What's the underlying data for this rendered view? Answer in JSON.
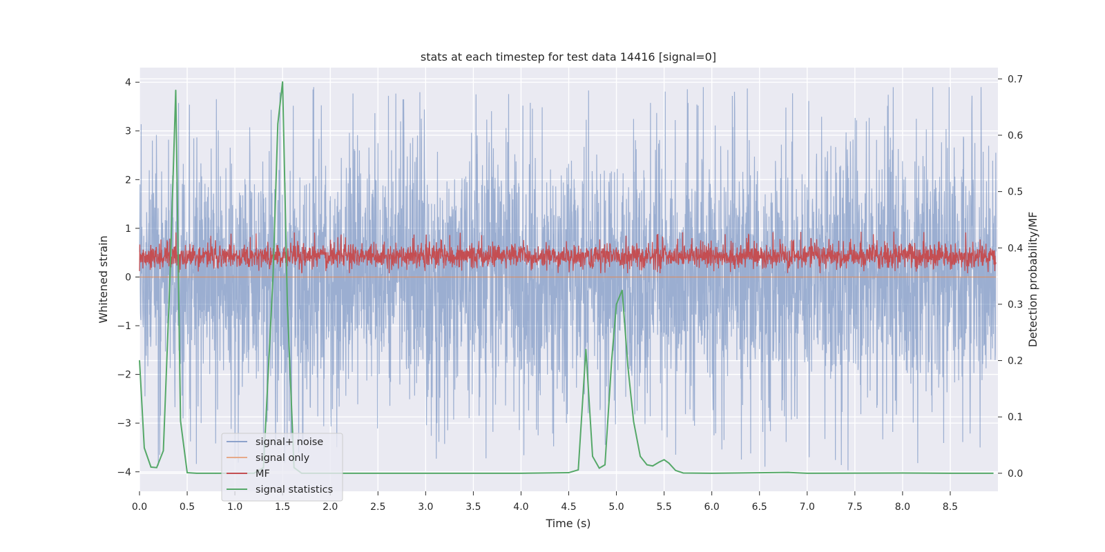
{
  "chart_data": {
    "type": "line",
    "title": "stats at each timestep for test data 14416 [signal=0]",
    "xlabel": "Time (s)",
    "ylabel": "Whitened strain",
    "y2label": "Detection probability/MF",
    "xlim": [
      0.0,
      9.0
    ],
    "ylim": [
      -4.4,
      4.3
    ],
    "y2lim": [
      -0.032,
      0.72
    ],
    "xticks": [
      "0.0",
      "0.5",
      "1.0",
      "1.5",
      "2.0",
      "2.5",
      "3.0",
      "3.5",
      "4.0",
      "4.5",
      "5.0",
      "5.5",
      "6.0",
      "6.5",
      "7.0",
      "7.5",
      "8.0",
      "8.5"
    ],
    "yticks": [
      "4",
      "3",
      "2",
      "1",
      "0",
      "−1",
      "−2",
      "−3",
      "−4"
    ],
    "y2ticks": [
      "0.7",
      "0.6",
      "0.5",
      "0.4",
      "0.3",
      "0.2",
      "0.1",
      "0.0"
    ],
    "grid": true,
    "legend_location": "lower-left",
    "colors": {
      "signal_noise": "#4c72b0",
      "signal_only": "#dd8452",
      "mf": "#c44e52",
      "statistics": "#55a868",
      "plot_bg": "#eaeaf2"
    },
    "series": [
      {
        "name": "signal+ noise",
        "axis": "left",
        "description": "dense noise trace approx ±2 with peaks to ±3.9",
        "range": [
          -4.0,
          3.9
        ]
      },
      {
        "name": "signal only",
        "axis": "left",
        "values": "flat at 0"
      },
      {
        "name": "MF",
        "axis": "right",
        "description": "dense trace ~0.36-0.42",
        "range": [
          0.355,
          0.43
        ]
      },
      {
        "name": "signal statistics",
        "axis": "right",
        "x": [
          0.0,
          0.05,
          0.12,
          0.18,
          0.25,
          0.32,
          0.38,
          0.43,
          0.5,
          0.6,
          0.8,
          1.0,
          1.2,
          1.3,
          1.4,
          1.45,
          1.5,
          1.55,
          1.62,
          1.7,
          2.0,
          3.0,
          4.0,
          4.5,
          4.6,
          4.68,
          4.75,
          4.82,
          4.88,
          4.95,
          5.0,
          5.06,
          5.12,
          5.18,
          5.25,
          5.32,
          5.38,
          5.45,
          5.5,
          5.55,
          5.62,
          5.7,
          6.0,
          6.8,
          7.0,
          8.0,
          8.5,
          8.95
        ],
        "values": [
          0.2,
          0.045,
          0.011,
          0.01,
          0.04,
          0.35,
          0.68,
          0.093,
          0.001,
          0.0,
          0.0,
          0.0,
          0.0,
          0.01,
          0.35,
          0.62,
          0.695,
          0.3,
          0.01,
          0.0,
          0.0,
          0.0,
          0.0,
          0.001,
          0.006,
          0.22,
          0.03,
          0.009,
          0.015,
          0.2,
          0.3,
          0.325,
          0.19,
          0.092,
          0.03,
          0.015,
          0.013,
          0.02,
          0.024,
          0.018,
          0.005,
          0.0005,
          0.0,
          0.0015,
          0.0,
          0.0005,
          0.0,
          0.0
        ]
      }
    ]
  },
  "legend": [
    {
      "label": "signal+ noise",
      "color": "#4c72b0"
    },
    {
      "label": "signal only",
      "color": "#dd8452"
    },
    {
      "label": "MF",
      "color": "#c44e52"
    },
    {
      "label": "signal statistics",
      "color": "#55a868"
    }
  ]
}
